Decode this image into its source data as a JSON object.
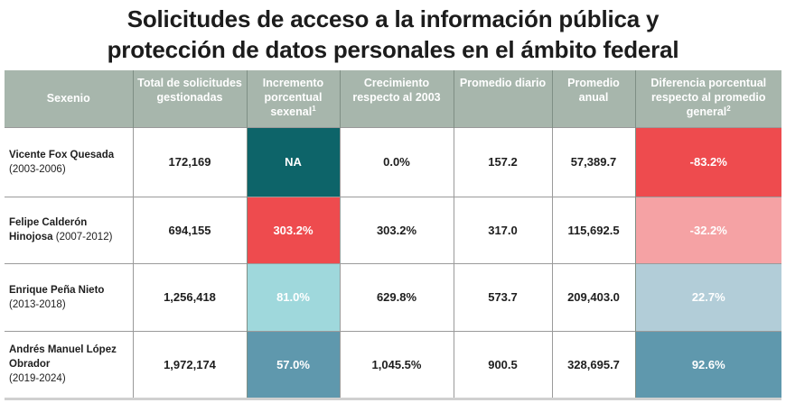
{
  "title": {
    "line1": "Solicitudes de acceso a la información pública y",
    "line2": "protección de datos personales en el ámbito federal"
  },
  "table": {
    "headers": [
      {
        "text": "Sexenio",
        "sup": ""
      },
      {
        "text": "Total de solicitudes gestionadas",
        "sup": ""
      },
      {
        "text": "Incremento porcentual sexenal",
        "sup": "1"
      },
      {
        "text": "Crecimiento respecto al 2003",
        "sup": ""
      },
      {
        "text": "Promedio diario",
        "sup": ""
      },
      {
        "text": "Promedio anual",
        "sup": ""
      },
      {
        "text": "Diferencia porcentual respecto al promedio general",
        "sup": "2"
      }
    ],
    "rows": [
      {
        "name": "Vicente Fox Quesada",
        "years": "(2003-2006)",
        "total": "172,169",
        "incremento": "NA",
        "incremento_color": "#0d6469",
        "crecimiento": "0.0%",
        "diario": "157.2",
        "anual": "57,389.7",
        "diferencia": "-83.2%",
        "diferencia_color": "#ee4b4e"
      },
      {
        "name": "Felipe Calderón Hinojosa",
        "years": "(2007-2012)",
        "total": "694,155",
        "incremento": "303.2%",
        "incremento_color": "#ee4b4e",
        "crecimiento": "303.2%",
        "diario": "317.0",
        "anual": "115,692.5",
        "diferencia": "-32.2%",
        "diferencia_color": "#f5a2a4"
      },
      {
        "name": "Enrique Peña Nieto",
        "years": "(2013-2018)",
        "total": "1,256,418",
        "incremento": "81.0%",
        "incremento_color": "#9fd8dc",
        "crecimiento": "629.8%",
        "diario": "573.7",
        "anual": "209,403.0",
        "diferencia": "22.7%",
        "diferencia_color": "#b2cdd8"
      },
      {
        "name": "Andrés Manuel López Obrador",
        "years": "(2019-2024)",
        "total": "1,972,174",
        "incremento": "57.0%",
        "incremento_color": "#5f98ad",
        "crecimiento": "1,045.5%",
        "diario": "900.5",
        "anual": "328,695.7",
        "diferencia": "92.6%",
        "diferencia_color": "#5f98ad"
      }
    ]
  }
}
